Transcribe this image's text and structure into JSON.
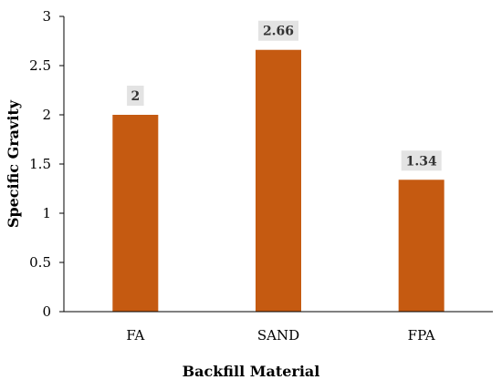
{
  "chart_data": {
    "type": "bar",
    "categories": [
      "FA",
      "SAND",
      "FPA"
    ],
    "values": [
      2,
      2.66,
      1.34
    ],
    "data_labels": [
      "2",
      "2.66",
      "1.34"
    ],
    "xlabel": "Backfill Material",
    "ylabel": "Specific Gravity",
    "ylim": [
      0,
      3
    ],
    "yticks": [
      "0",
      "0.5",
      "1",
      "1.5",
      "2",
      "2.5",
      "3"
    ],
    "grid": false,
    "bar_color": "#c55a11"
  }
}
